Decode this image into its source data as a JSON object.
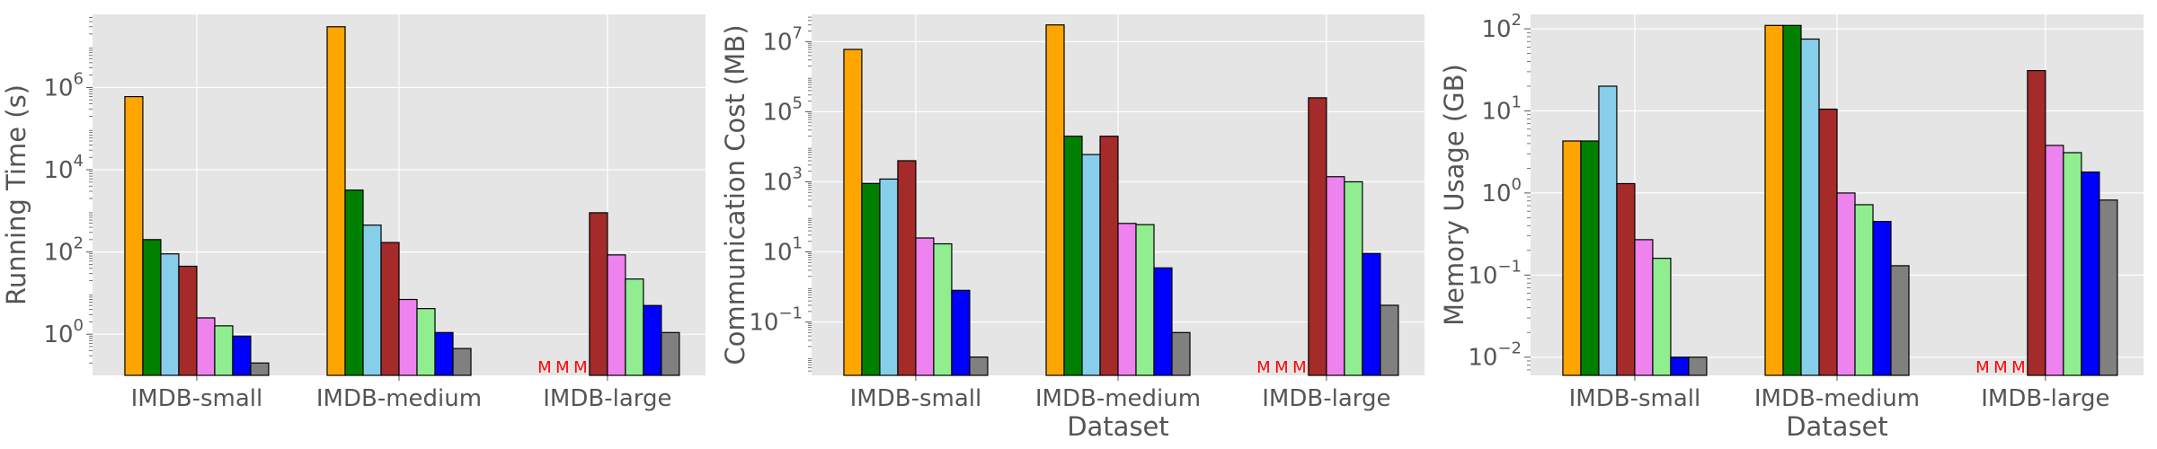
{
  "colors": {
    "series": [
      "#FFA500",
      "#008000",
      "#87CEEB",
      "#A52A2A",
      "#EE82EE",
      "#90EE90",
      "#0000FF",
      "#808080"
    ],
    "missing_marker": "#FF0000",
    "axes_bg": "#E5E5E5",
    "grid": "#FFFFFF",
    "text": "#555555",
    "bar_edge": "#000000"
  },
  "chart_data": [
    {
      "type": "bar",
      "ylabel": "Running Time (s)",
      "xlabel": "",
      "yscale": "log",
      "ylim": [
        0.1,
        60000000
      ],
      "yticks": [
        {
          "value": 1,
          "exp": "0"
        },
        {
          "value": 100,
          "exp": "2"
        },
        {
          "value": 10000,
          "exp": "4"
        },
        {
          "value": 1000000,
          "exp": "6"
        }
      ],
      "categories": [
        "IMDB-small",
        "IMDB-medium",
        "IMDB-large"
      ],
      "series": [
        {
          "values": [
            600000,
            30000000,
            null
          ]
        },
        {
          "values": [
            200,
            3200,
            null
          ]
        },
        {
          "values": [
            90,
            450,
            null
          ]
        },
        {
          "values": [
            45,
            170,
            900
          ]
        },
        {
          "values": [
            2.5,
            7,
            85
          ]
        },
        {
          "values": [
            1.6,
            4.2,
            22
          ]
        },
        {
          "values": [
            0.9,
            1.1,
            5
          ]
        },
        {
          "values": [
            0.2,
            0.45,
            1.1
          ]
        }
      ],
      "missing_label": "M",
      "grid": true
    },
    {
      "type": "bar",
      "ylabel": "Communication Cost (MB)",
      "xlabel": "Dataset",
      "yscale": "log",
      "ylim": [
        0.003,
        60000000
      ],
      "yticks": [
        {
          "value": 0.1,
          "exp": "−1"
        },
        {
          "value": 10,
          "exp": "1"
        },
        {
          "value": 1000,
          "exp": "3"
        },
        {
          "value": 100000,
          "exp": "5"
        },
        {
          "value": 10000000,
          "exp": "7"
        }
      ],
      "categories": [
        "IMDB-small",
        "IMDB-medium",
        "IMDB-large"
      ],
      "series": [
        {
          "values": [
            6000000,
            30000000,
            null
          ]
        },
        {
          "values": [
            900,
            20000,
            null
          ]
        },
        {
          "values": [
            1200,
            6000,
            null
          ]
        },
        {
          "values": [
            4000,
            20000,
            250000
          ]
        },
        {
          "values": [
            25,
            65,
            1400
          ]
        },
        {
          "values": [
            17,
            60,
            1000
          ]
        },
        {
          "values": [
            0.8,
            3.5,
            9
          ]
        },
        {
          "values": [
            0.01,
            0.05,
            0.3
          ]
        }
      ],
      "missing_label": "M",
      "grid": true
    },
    {
      "type": "bar",
      "ylabel": "Memory Usage (GB)",
      "xlabel": "Dataset",
      "yscale": "log",
      "ylim": [
        0.006,
        150
      ],
      "yticks": [
        {
          "value": 0.01,
          "exp": "−2"
        },
        {
          "value": 0.1,
          "exp": "−1"
        },
        {
          "value": 1,
          "exp": "0"
        },
        {
          "value": 10,
          "exp": "1"
        },
        {
          "value": 100,
          "exp": "2"
        }
      ],
      "categories": [
        "IMDB-small",
        "IMDB-medium",
        "IMDB-large"
      ],
      "series": [
        {
          "values": [
            4.3,
            110,
            null
          ]
        },
        {
          "values": [
            4.3,
            110,
            null
          ]
        },
        {
          "values": [
            20,
            75,
            null
          ]
        },
        {
          "values": [
            1.3,
            10.5,
            31
          ]
        },
        {
          "values": [
            0.27,
            1.0,
            3.8
          ]
        },
        {
          "values": [
            0.16,
            0.72,
            3.1
          ]
        },
        {
          "values": [
            0.01,
            0.45,
            1.8
          ]
        },
        {
          "values": [
            0.01,
            0.13,
            0.82
          ]
        }
      ],
      "missing_label": "M",
      "grid": true
    }
  ]
}
